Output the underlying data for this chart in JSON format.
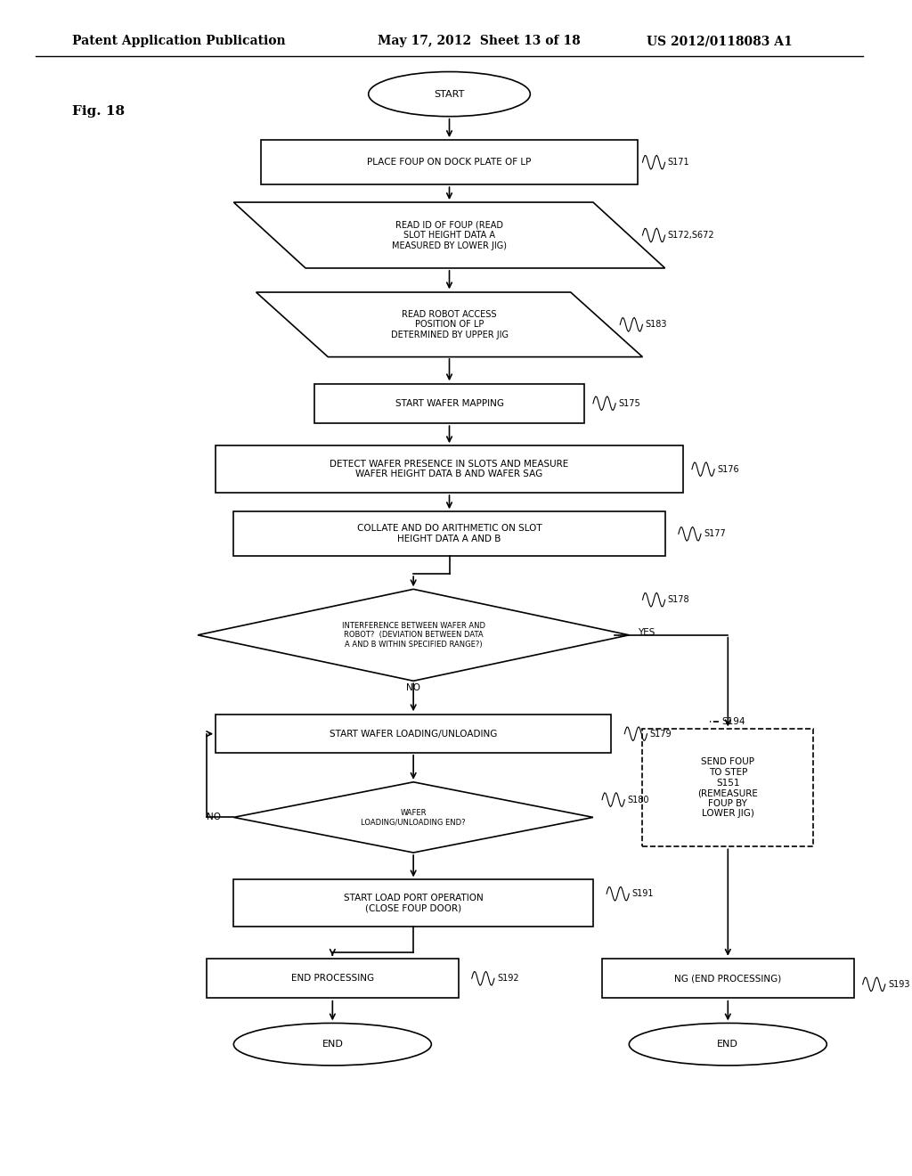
{
  "header_left": "Patent Application Publication",
  "header_mid": "May 17, 2012  Sheet 13 of 18",
  "header_right": "US 2012/0118083 A1",
  "fig_label": "Fig. 18",
  "bg_color": "#ffffff",
  "line_color": "#000000"
}
